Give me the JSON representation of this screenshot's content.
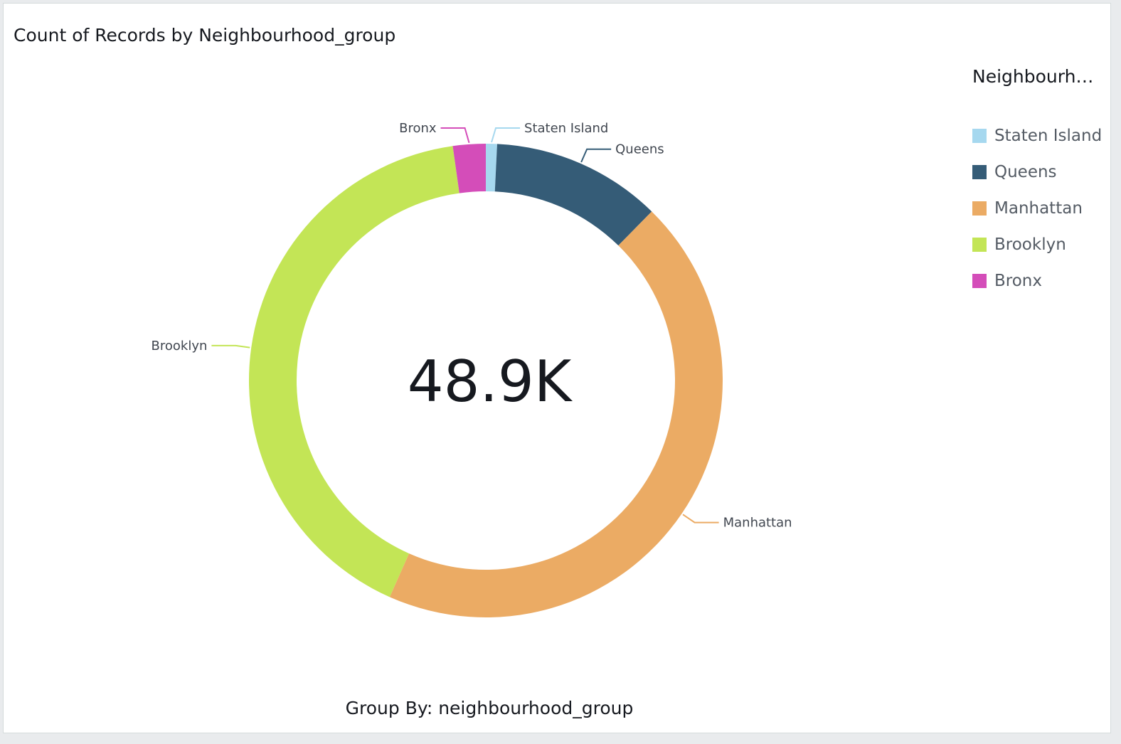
{
  "chart_data": {
    "type": "pie",
    "style": "donut",
    "title": "Count of Records by Neighbourhood_group",
    "center_value": "48.9K",
    "legend_title": "Neighbourh…",
    "legend_position": "right",
    "footer": "Group By: neighbourhood_group",
    "slices": [
      {
        "name": "Staten Island",
        "value": 373,
        "color": "#a6d8ef"
      },
      {
        "name": "Queens",
        "value": 5666,
        "color": "#355c77"
      },
      {
        "name": "Manhattan",
        "value": 21661,
        "color": "#ebab64"
      },
      {
        "name": "Brooklyn",
        "value": 20104,
        "color": "#c3e556"
      },
      {
        "name": "Bronx",
        "value": 1091,
        "color": "#d44db9"
      }
    ]
  }
}
